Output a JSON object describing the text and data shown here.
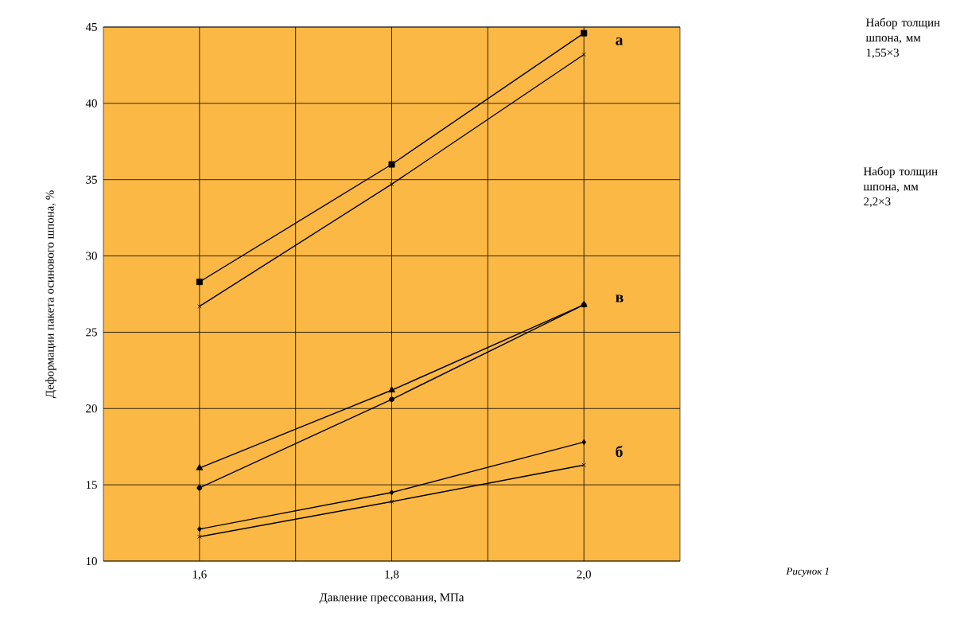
{
  "chart_data": {
    "type": "line",
    "xlabel": "Давление прессования, МПа",
    "ylabel": "Деформации пакета осинового шпона, %",
    "x": [
      1.6,
      1.8,
      2.0
    ],
    "xlim": [
      1.5,
      2.1
    ],
    "xticks": [
      {
        "value": 1.6,
        "label": "1,6"
      },
      {
        "value": 1.7,
        "label": null
      },
      {
        "value": 1.8,
        "label": "1,8"
      },
      {
        "value": 1.9,
        "label": null
      },
      {
        "value": 2.0,
        "label": "2,0"
      }
    ],
    "ylim": [
      10,
      45
    ],
    "yticks": [
      10,
      15,
      20,
      25,
      30,
      35,
      40,
      45
    ],
    "grid": true,
    "line_style": "solid",
    "series": [
      {
        "color": "#000000",
        "marker": "square",
        "values": [
          28.3,
          36.0,
          44.6
        ]
      },
      {
        "color": "#000000",
        "marker": "cross",
        "values": [
          26.7,
          34.7,
          43.2
        ]
      },
      {
        "color": "#000000",
        "marker": "triangle",
        "values": [
          16.1,
          21.2,
          26.8
        ]
      },
      {
        "color": "#000000",
        "marker": "circle",
        "values": [
          14.8,
          20.6,
          26.8
        ]
      },
      {
        "color": "#000000",
        "marker": "diamond",
        "values": [
          12.1,
          14.5,
          17.8
        ]
      },
      {
        "color": "#000000",
        "marker": "cross",
        "values": [
          11.6,
          13.9,
          16.3
        ]
      }
    ],
    "annotations": [
      "а",
      "в",
      "б",
      "Набор толщин шпона, мм 1,55×3",
      "Набор толщин шпона, мм 2,2×3",
      "Рисунок 1"
    ]
  }
}
